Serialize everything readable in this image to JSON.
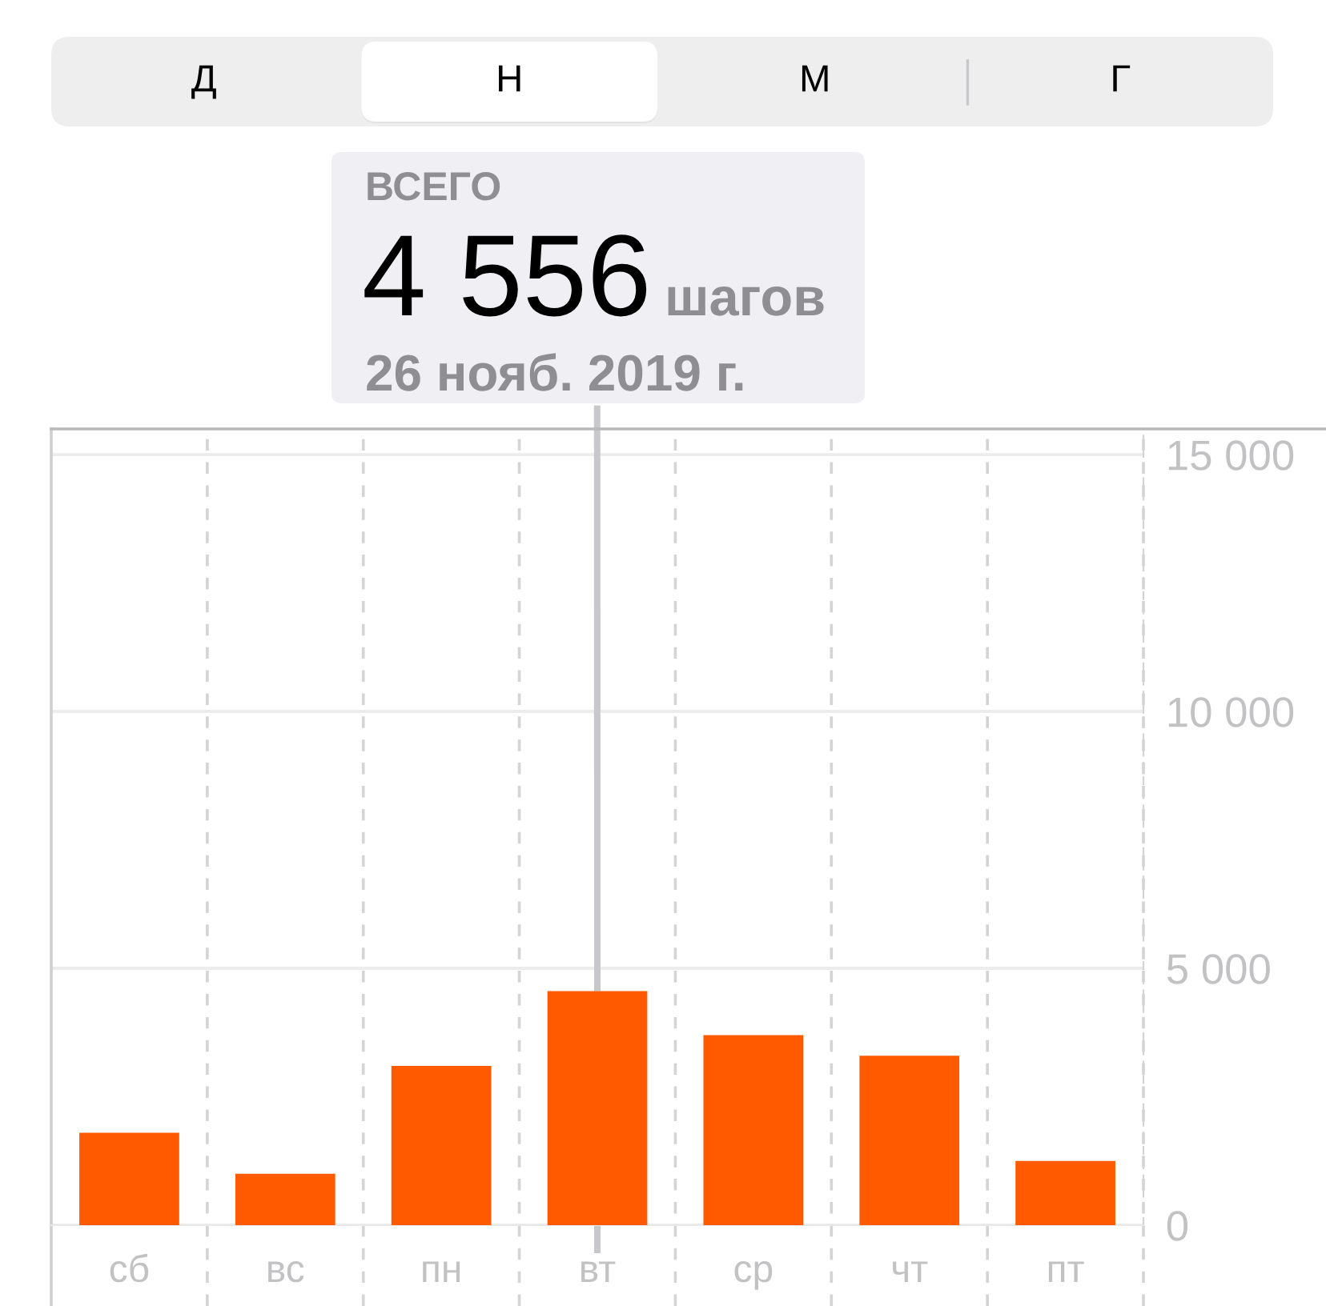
{
  "chart_data": {
    "type": "bar",
    "categories": [
      "сб",
      "вс",
      "пн",
      "вт",
      "ср",
      "чт",
      "пт"
    ],
    "values": [
      1800,
      1000,
      3100,
      4556,
      3700,
      3300,
      1250
    ],
    "color": "#ff5a00",
    "ylim": [
      0,
      15500
    ],
    "yticks": [
      0,
      {
        "value": 5000,
        "label": "5 000"
      },
      {
        "value": 10000,
        "label": "10 000"
      },
      {
        "value": 15000,
        "label": "15 000"
      }
    ],
    "grid": true,
    "annotations": [
      "ВСЕГО",
      "4 556",
      "шагов",
      {
        "text": "26 нояб. 2019 г.",
        "x": "вт",
        "y": 4556
      },
      "Д",
      "Н",
      "М",
      "Г"
    ]
  }
}
